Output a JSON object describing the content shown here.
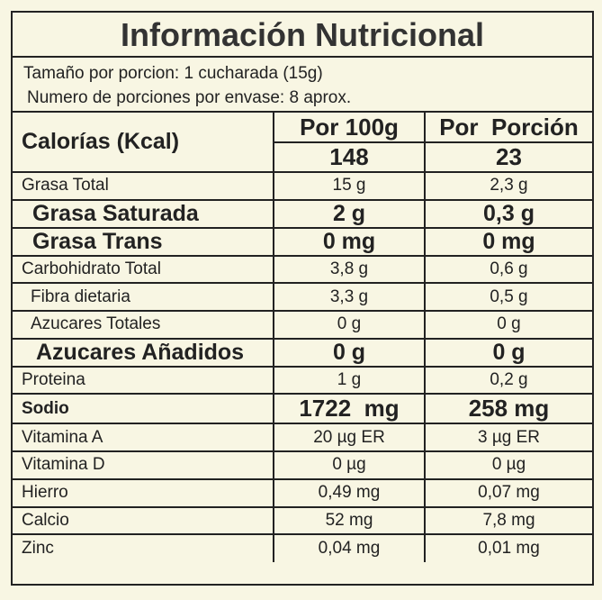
{
  "title": "Información Nutricional",
  "serving": [
    "Tamaño por porcion: 1 cucharada (15g)",
    "Numero de porciones por envase: 8 aprox."
  ],
  "header": {
    "label": "Calorías (Kcal)",
    "columns": [
      "Por 100g",
      "Por  Porción"
    ],
    "calories": [
      148,
      23
    ]
  },
  "rows": [
    [
      "Grasa Total",
      "15 g",
      "2,3 g"
    ],
    [
      "Grasa Saturada",
      "2 g",
      "0,3 g"
    ],
    [
      "Grasa Trans",
      "0 mg",
      "0 mg"
    ],
    [
      "Carbohidrato Total",
      "3,8 g",
      "0,6 g"
    ],
    [
      "Fibra dietaria",
      "3,3 g",
      "0,5 g"
    ],
    [
      "Azucares Totales",
      "0 g",
      "0 g"
    ],
    [
      "Azucares Añadidos",
      "0 g",
      "0 g"
    ],
    [
      "Proteina",
      "1 g",
      "0,2 g"
    ],
    [
      "Sodio",
      "1722  mg",
      "258 mg"
    ],
    [
      "Vitamina A",
      "20 µg ER",
      "3 µg ER"
    ],
    [
      "Vitamina D",
      "0 µg",
      "0 µg"
    ],
    [
      "Hierro",
      "0,49 mg",
      "0,07 mg"
    ],
    [
      "Calcio",
      "52 mg",
      "7,8 mg"
    ],
    [
      "Zinc",
      "0,04 mg",
      "0,01 mg"
    ]
  ]
}
